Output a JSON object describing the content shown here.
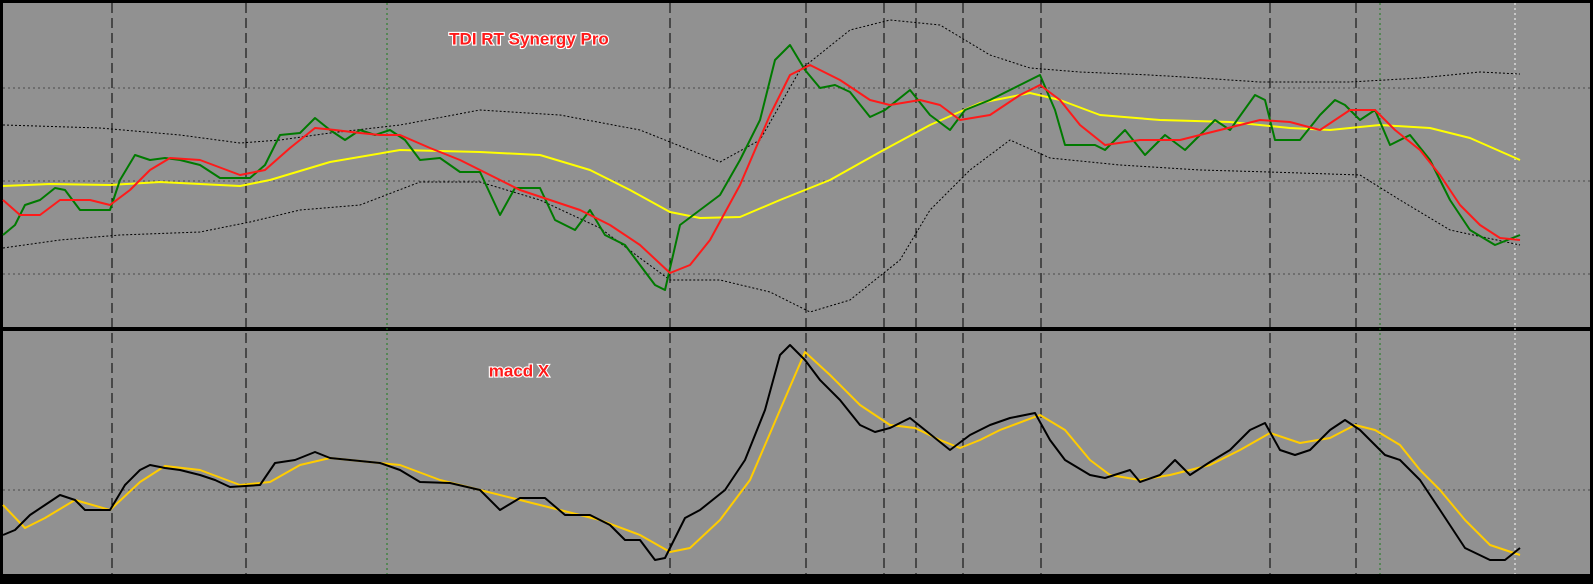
{
  "panels": [
    {
      "title": "TDI RT Synergy Pro"
    },
    {
      "title": "macd X"
    }
  ]
}
